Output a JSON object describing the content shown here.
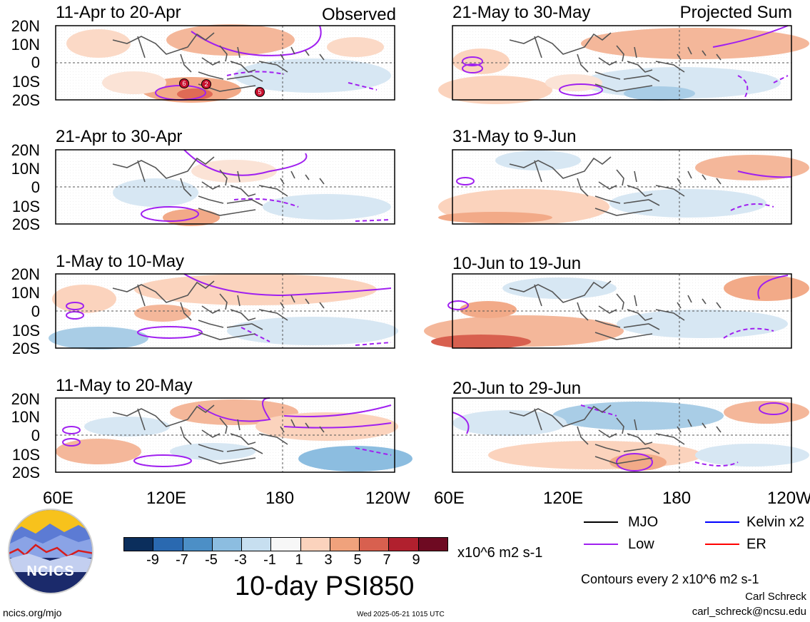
{
  "panels": [
    {
      "title": "11-Apr to 20-Apr",
      "corner_label": "Observed"
    },
    {
      "title": "21-May to 30-May",
      "corner_label": "Projected Sum"
    },
    {
      "title": "21-Apr to 30-Apr",
      "corner_label": ""
    },
    {
      "title": "31-May to 9-Jun",
      "corner_label": ""
    },
    {
      "title": "1-May to 10-May",
      "corner_label": ""
    },
    {
      "title": "10-Jun to 19-Jun",
      "corner_label": ""
    },
    {
      "title": "11-May to 20-May",
      "corner_label": ""
    },
    {
      "title": "20-Jun to 29-Jun",
      "corner_label": ""
    }
  ],
  "lat_labels": [
    "20N",
    "10N",
    "0",
    "10S",
    "20S"
  ],
  "lon_labels": [
    "60E",
    "120E",
    "180",
    "120W"
  ],
  "colorbar": {
    "colors": [
      "#0b2e5c",
      "#2a69b0",
      "#4c8fc6",
      "#8cbde0",
      "#c7dff0",
      "#f7f7f7",
      "#fbd3bd",
      "#f0a27c",
      "#d8604f",
      "#b1202e",
      "#6e0a22"
    ],
    "tick_labels": [
      "-9",
      "-7",
      "-5",
      "-3",
      "-1",
      "1",
      "3",
      "5",
      "7",
      "9"
    ],
    "units": "x10^6 m2 s-1"
  },
  "main_title": "10-day PSI850",
  "logo_text": "NCICS",
  "legend": [
    {
      "label": "MJO",
      "color": "#000000"
    },
    {
      "label": "Kelvin x2",
      "color": "#0000ff"
    },
    {
      "label": "Low",
      "color": "#a020f0"
    },
    {
      "label": "ER",
      "color": "#ff0000"
    }
  ],
  "contour_note": "Contours every 2 x10^6 m2 s-1",
  "author": "Carl Schreck",
  "email": "carl_schreck@ncsu.edu",
  "website": "ncics.org/mjo",
  "timestamp": "Wed 2025-05-21 1015 UTC",
  "storm_markers": [
    "6",
    "2",
    "5"
  ]
}
